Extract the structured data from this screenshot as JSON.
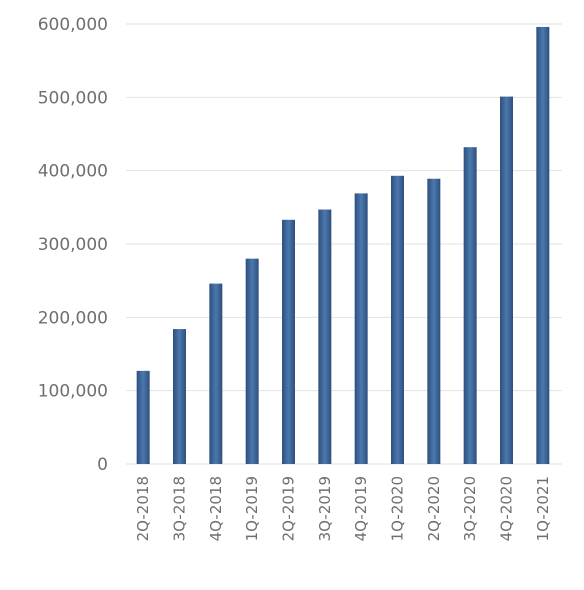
{
  "chart_data": {
    "type": "bar",
    "title": "",
    "xlabel": "",
    "ylabel": "",
    "categories": [
      "2Q-2018",
      "3Q-2018",
      "4Q-2018",
      "1Q-2019",
      "2Q-2019",
      "3Q-2019",
      "4Q-2019",
      "1Q-2020",
      "2Q-2020",
      "3Q-2020",
      "4Q-2020",
      "1Q-2021"
    ],
    "values": [
      127000,
      184000,
      246000,
      280000,
      333000,
      347000,
      369000,
      393000,
      389000,
      432000,
      501000,
      596000
    ],
    "ylim": [
      0,
      600000
    ],
    "yticks": [
      0,
      100000,
      200000,
      300000,
      400000,
      500000,
      600000
    ],
    "ytick_labels": [
      "0",
      "100,000",
      "200,000",
      "300,000",
      "400,000",
      "500,000",
      "600,000"
    ],
    "grid": true,
    "legend": "none",
    "colors": {
      "bar_edge": "#2f4f7c",
      "bar_center": "#4a78ae",
      "grid": "#e2e2e2",
      "axis_text": "#6f6f6f"
    }
  }
}
